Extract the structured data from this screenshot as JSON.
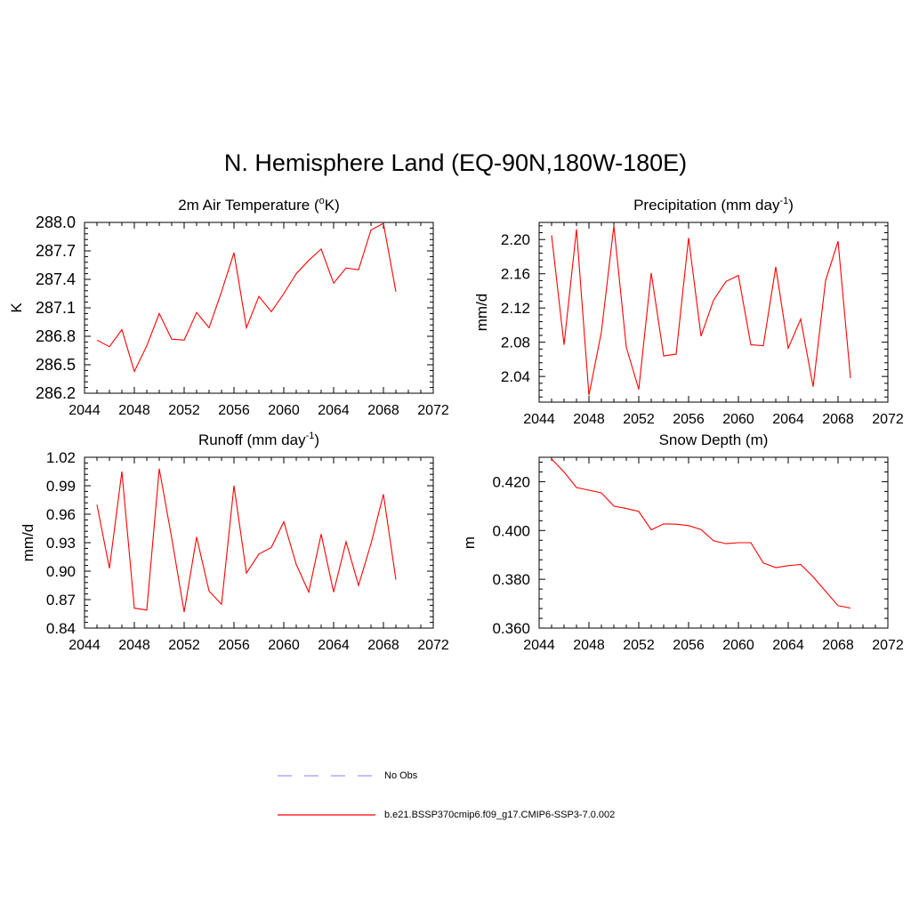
{
  "figure_title": "N. Hemisphere Land (EQ-90N,180W-180E)",
  "legend": [
    {
      "label": "No Obs",
      "color": "#9999ff",
      "style": "dashed"
    },
    {
      "label": "b.e21.BSSP370cmip6.f09_g17.CMIP6-SSP3-7.0.002",
      "color": "#ff0000",
      "style": "solid"
    }
  ],
  "chart_data": [
    {
      "type": "line",
      "title": "2m Air Temperature (",
      "title_sup": "o",
      "title_tail": "K)",
      "ylabel": "K",
      "xlim": [
        2044,
        2072
      ],
      "ylim": [
        286.2,
        288.0
      ],
      "yticks": [
        "286.2",
        "286.5",
        "286.8",
        "287.1",
        "287.4",
        "287.7",
        "288.0"
      ],
      "xticks": [
        "2044",
        "2048",
        "2052",
        "2056",
        "2060",
        "2064",
        "2068",
        "2072"
      ],
      "series": [
        {
          "x": [
            2045,
            2046,
            2047,
            2048,
            2049,
            2050,
            2051,
            2052,
            2053,
            2054,
            2055,
            2056,
            2057,
            2058,
            2059,
            2060,
            2061,
            2062,
            2063,
            2064,
            2065,
            2066,
            2067,
            2068,
            2069
          ],
          "values": [
            286.76,
            286.69,
            286.87,
            286.43,
            286.7,
            287.04,
            286.77,
            286.76,
            287.05,
            286.89,
            287.27,
            287.68,
            286.89,
            287.22,
            287.06,
            287.25,
            287.46,
            287.6,
            287.72,
            287.36,
            287.52,
            287.5,
            287.92,
            287.99,
            287.27
          ]
        }
      ]
    },
    {
      "type": "line",
      "title": "Precipitation (mm day",
      "title_sup": "-1",
      "title_tail": ")",
      "ylabel": "mm/d",
      "xlim": [
        2044,
        2072
      ],
      "ylim": [
        2.01,
        2.22
      ],
      "yticks": [
        "2.04",
        "2.08",
        "2.12",
        "2.16",
        "2.20"
      ],
      "ytick_values": [
        2.04,
        2.08,
        2.12,
        2.16,
        2.2
      ],
      "xticks": [
        "2044",
        "2048",
        "2052",
        "2056",
        "2060",
        "2064",
        "2068",
        "2072"
      ],
      "series": [
        {
          "x": [
            2045,
            2046,
            2047,
            2048,
            2049,
            2050,
            2051,
            2052,
            2053,
            2054,
            2055,
            2056,
            2057,
            2058,
            2059,
            2060,
            2061,
            2062,
            2063,
            2064,
            2065,
            2066,
            2067,
            2068,
            2069
          ],
          "values": [
            2.205,
            2.077,
            2.212,
            2.018,
            2.092,
            2.216,
            2.074,
            2.025,
            2.161,
            2.064,
            2.066,
            2.202,
            2.087,
            2.129,
            2.151,
            2.158,
            2.077,
            2.076,
            2.168,
            2.073,
            2.107,
            2.028,
            2.152,
            2.198,
            2.038
          ]
        }
      ]
    },
    {
      "type": "line",
      "title": "Runoff (mm day",
      "title_sup": "-1",
      "title_tail": ")",
      "ylabel": "mm/d",
      "xlim": [
        2044,
        2072
      ],
      "ylim": [
        0.84,
        1.02
      ],
      "yticks": [
        "0.84",
        "0.87",
        "0.90",
        "0.93",
        "0.96",
        "0.99",
        "1.02"
      ],
      "xticks": [
        "2044",
        "2048",
        "2052",
        "2056",
        "2060",
        "2064",
        "2068",
        "2072"
      ],
      "series": [
        {
          "x": [
            2045,
            2046,
            2047,
            2048,
            2049,
            2050,
            2051,
            2052,
            2053,
            2054,
            2055,
            2056,
            2057,
            2058,
            2059,
            2060,
            2061,
            2062,
            2063,
            2064,
            2065,
            2066,
            2067,
            2068,
            2069
          ],
          "values": [
            0.97,
            0.903,
            1.005,
            0.861,
            0.859,
            1.008,
            0.935,
            0.857,
            0.936,
            0.879,
            0.865,
            0.99,
            0.898,
            0.918,
            0.925,
            0.952,
            0.907,
            0.878,
            0.939,
            0.878,
            0.931,
            0.885,
            0.929,
            0.981,
            0.891
          ]
        }
      ]
    },
    {
      "type": "line",
      "title": "Snow Depth (m)",
      "title_sup": "",
      "title_tail": "",
      "ylabel": "m",
      "xlim": [
        2044,
        2072
      ],
      "ylim": [
        0.36,
        0.43
      ],
      "yticks": [
        "0.360",
        "0.380",
        "0.400",
        "0.420"
      ],
      "ytick_values": [
        0.36,
        0.38,
        0.4,
        0.42
      ],
      "xticks": [
        "2044",
        "2048",
        "2052",
        "2056",
        "2060",
        "2064",
        "2068",
        "2072"
      ],
      "series": [
        {
          "x": [
            2045,
            2046,
            2047,
            2048,
            2049,
            2050,
            2051,
            2052,
            2053,
            2054,
            2055,
            2056,
            2057,
            2058,
            2059,
            2060,
            2061,
            2062,
            2063,
            2064,
            2065,
            2066,
            2067,
            2068,
            2069
          ],
          "values": [
            0.4293,
            0.424,
            0.4176,
            0.4165,
            0.4154,
            0.41,
            0.409,
            0.4078,
            0.4003,
            0.4027,
            0.4026,
            0.402,
            0.4004,
            0.3958,
            0.3946,
            0.395,
            0.395,
            0.3867,
            0.3848,
            0.3856,
            0.3861,
            0.381,
            0.3751,
            0.3692,
            0.3682
          ]
        }
      ]
    }
  ]
}
